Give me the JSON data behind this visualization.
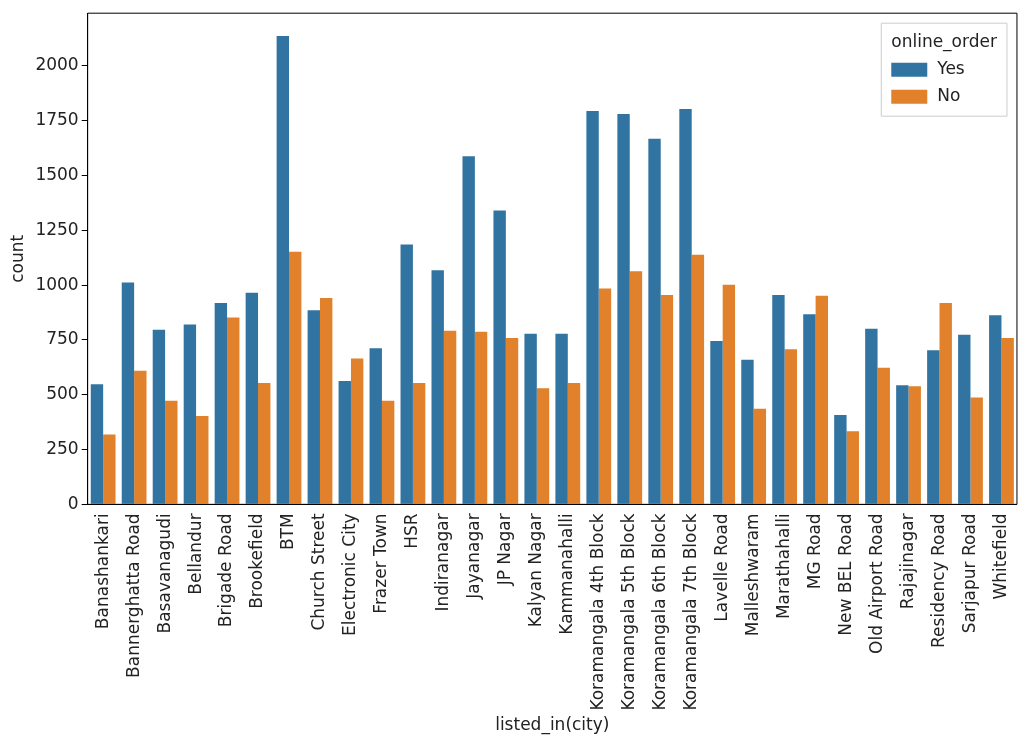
{
  "chart_data": {
    "type": "bar",
    "xlabel": "listed_in(city)",
    "ylabel": "count",
    "legend_title": "online_order",
    "legend": "top right",
    "grid": false,
    "categories": [
      "Banashankari",
      "Bannerghatta Road",
      "Basavanagudi",
      "Bellandur",
      "Brigade Road",
      "Brookefield",
      "BTM",
      "Church Street",
      "Electronic City",
      "Frazer Town",
      "HSR",
      "Indiranagar",
      "Jayanagar",
      "JP Nagar",
      "Kalyan Nagar",
      "Kammanahalli",
      "Koramangala 4th Block",
      "Koramangala 5th Block",
      "Koramangala 6th Block",
      "Koramangala 7th Block",
      "Lavelle Road",
      "Malleshwaram",
      "Marathahalli",
      "MG Road",
      "New BEL Road",
      "Old Airport Road",
      "Rajajinagar",
      "Residency Road",
      "Sarjapur Road",
      "Whitefield"
    ],
    "series": [
      {
        "name": "Yes",
        "color": "#3274a1",
        "values": [
          548,
          1012,
          796,
          820,
          918,
          965,
          2136,
          885,
          562,
          712,
          1185,
          1068,
          1588,
          1340,
          778,
          778,
          1794,
          1780,
          1667,
          1803,
          745,
          660,
          955,
          867,
          407,
          801,
          543,
          703,
          773,
          862
        ]
      },
      {
        "name": "No",
        "color": "#e1812c",
        "values": [
          318,
          609,
          473,
          403,
          852,
          553,
          1152,
          941,
          665,
          473,
          553,
          792,
          787,
          759,
          529,
          553,
          984,
          1063,
          955,
          1138,
          1002,
          436,
          707,
          951,
          333,
          623,
          539,
          918,
          487,
          759
        ]
      }
    ],
    "ylim": [
      0,
      2240
    ],
    "yticks": [
      0,
      250,
      500,
      750,
      1000,
      1250,
      1500,
      1750,
      2000
    ]
  }
}
